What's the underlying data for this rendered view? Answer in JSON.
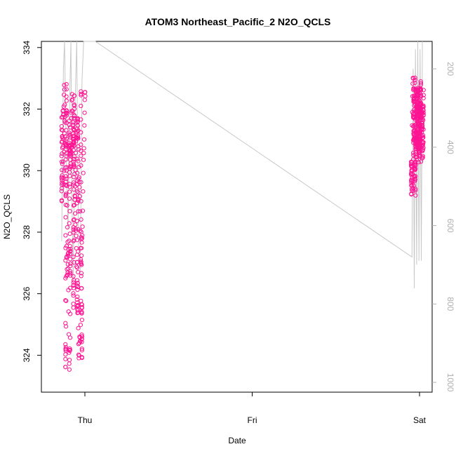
{
  "chart_data": {
    "type": "scatter",
    "title": "ATOM3 Northeast_Pacific_2 N2O_QCLS",
    "xlabel": "Date",
    "ylabel": "N2O_QCLS",
    "x_ticks": [
      "Thu",
      "Fri",
      "Sat"
    ],
    "y_ticks": [
      324,
      326,
      328,
      330,
      332,
      334
    ],
    "y_right_ticks": [
      200,
      400,
      600,
      800,
      1000
    ],
    "ylim": [
      322.8,
      334.2
    ],
    "y_right_lim": [
      1025,
      130
    ],
    "series": [
      {
        "axis": "left",
        "marker": "open-circle",
        "color": "#ff1493",
        "segments": [
          {
            "x_start": "Wed 20:45",
            "x_end": "Wed 22:15",
            "points": [
              [
                0.0,
                331.1
              ],
              [
                0.05,
                329.8
              ],
              [
                0.1,
                331.6
              ],
              [
                0.15,
                328.6
              ],
              [
                0.2,
                330.5
              ],
              [
                0.25,
                332.0
              ],
              [
                0.3,
                332.5
              ],
              [
                0.35,
                331.0
              ],
              [
                0.4,
                329.3
              ],
              [
                0.45,
                325.8
              ],
              [
                0.5,
                323.4
              ],
              [
                0.55,
                324.6
              ],
              [
                0.6,
                327.5
              ],
              [
                0.65,
                326.4
              ],
              [
                0.7,
                328.3
              ],
              [
                0.75,
                331.0
              ],
              [
                0.8,
                330.4
              ],
              [
                0.85,
                331.7
              ],
              [
                0.9,
                329.6
              ],
              [
                0.95,
                331.2
              ],
              [
                1.0,
                330.0
              ]
            ]
          },
          {
            "x_start": "Wed 22:15",
            "x_end": "Wed 23:45",
            "points": [
              [
                0.0,
                331.9
              ],
              [
                0.05,
                332.2
              ],
              [
                0.1,
                331.4
              ],
              [
                0.15,
                329.2
              ],
              [
                0.2,
                327.4
              ],
              [
                0.25,
                325.6
              ],
              [
                0.3,
                326.5
              ],
              [
                0.35,
                328.8
              ],
              [
                0.4,
                330.3
              ],
              [
                0.45,
                331.6
              ],
              [
                0.5,
                331.2
              ],
              [
                0.55,
                329.0
              ],
              [
                0.6,
                327.2
              ],
              [
                0.65,
                325.9
              ],
              [
                0.7,
                325.2
              ],
              [
                0.75,
                323.9
              ],
              [
                0.8,
                324.8
              ],
              [
                0.85,
                327.6
              ],
              [
                0.9,
                329.4
              ],
              [
                0.95,
                331.7
              ],
              [
                1.0,
                332.5
              ]
            ]
          },
          {
            "x_start": "Sat 22:50",
            "x_end": "Fri 23:10",
            "points": []
          },
          {
            "x_start": "Fri 23:00",
            "x_end": "Fri 23:10",
            "points": [
              [
                0.0,
                329.6
              ],
              [
                0.25,
                329.8
              ],
              [
                0.5,
                330.1
              ],
              [
                0.75,
                329.5
              ],
              [
                1.0,
                330.3
              ]
            ]
          },
          {
            "x_start": "Fri 23:10",
            "x_end": "Sat 00:05",
            "points": [
              [
                0.0,
                331.8
              ],
              [
                0.05,
                333.0
              ],
              [
                0.1,
                332.0
              ],
              [
                0.15,
                331.2
              ],
              [
                0.2,
                330.6
              ],
              [
                0.25,
                331.5
              ],
              [
                0.3,
                332.6
              ],
              [
                0.35,
                331.4
              ],
              [
                0.4,
                330.8
              ],
              [
                0.45,
                331.9
              ],
              [
                0.5,
                332.9
              ],
              [
                0.55,
                331.6
              ],
              [
                0.6,
                330.4
              ],
              [
                0.65,
                331.0
              ],
              [
                0.7,
                332.4
              ],
              [
                0.75,
                331.7
              ],
              [
                0.8,
                330.7
              ],
              [
                0.85,
                331.3
              ],
              [
                0.9,
                332.6
              ],
              [
                0.95,
                331.6
              ],
              [
                1.0,
                330.9
              ]
            ]
          },
          {
            "x_start": "Sat 00:05",
            "x_end": "Sat 00:20",
            "points": [
              [
                0.0,
                331.2
              ],
              [
                0.1,
                332.1
              ],
              [
                0.2,
                330.6
              ],
              [
                0.3,
                331.8
              ],
              [
                0.4,
                332.6
              ],
              [
                0.5,
                331.4
              ],
              [
                0.6,
                330.7
              ],
              [
                0.7,
                331.9
              ],
              [
                0.8,
                332.4
              ],
              [
                0.9,
                331.0
              ],
              [
                1.0,
                330.5
              ]
            ]
          }
        ]
      },
      {
        "axis": "right",
        "line": true,
        "color": "#c8c8c8",
        "points": [
          [
            "Wed 20:40",
            640
          ],
          [
            "Wed 20:55",
            200
          ],
          [
            "Wed 21:05",
            130
          ],
          [
            "Wed 21:20",
            420
          ],
          [
            "Wed 21:35",
            610
          ],
          [
            "Wed 21:50",
            260
          ],
          [
            "Wed 22:00",
            130
          ],
          [
            "Wed 22:10",
            560
          ],
          [
            "Wed 22:20",
            740
          ],
          [
            "Wed 22:35",
            300
          ],
          [
            "Wed 22:50",
            130
          ],
          [
            "Wed 23:05",
            650
          ],
          [
            "Wed 23:20",
            720
          ],
          [
            "Wed 23:35",
            230
          ],
          [
            "Wed 23:50",
            130
          ],
          [
            "Thu 01:30",
            130
          ],
          [
            "Fri 22:55",
            680
          ],
          [
            "Fri 23:05",
            200
          ],
          [
            "Fri 23:15",
            760
          ],
          [
            "Fri 23:25",
            150
          ],
          [
            "Fri 23:35",
            700
          ],
          [
            "Fri 23:45",
            130
          ],
          [
            "Fri 23:55",
            690
          ],
          [
            "Sat 00:05",
            150
          ],
          [
            "Sat 00:15",
            690
          ],
          [
            "Sat 00:25",
            130
          ]
        ]
      }
    ],
    "grid": false
  }
}
